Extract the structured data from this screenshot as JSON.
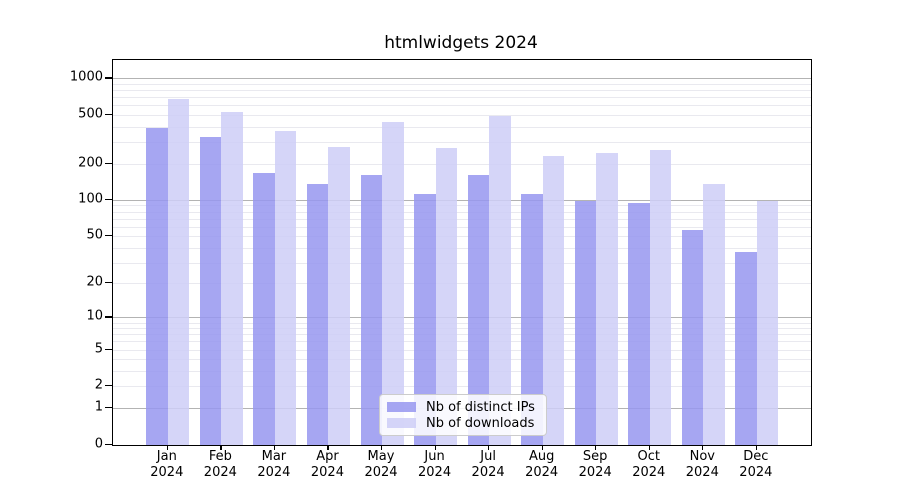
{
  "chart_data": {
    "type": "bar",
    "title": "htmlwidgets 2024",
    "categories": [
      "Jan",
      "Feb",
      "Mar",
      "Apr",
      "May",
      "Jun",
      "Jul",
      "Aug",
      "Sep",
      "Oct",
      "Nov",
      "Dec"
    ],
    "xtick_year": "2024",
    "series": [
      {
        "name": "Nb of distinct IPs",
        "values": [
          389,
          330,
          168,
          136,
          162,
          112,
          162,
          112,
          98,
          94,
          56,
          37
        ]
      },
      {
        "name": "Nb of downloads",
        "values": [
          672,
          527,
          367,
          276,
          436,
          270,
          489,
          230,
          245,
          259,
          136,
          99
        ]
      }
    ],
    "y_scale": "log1p",
    "ylim": [
      0,
      1430
    ],
    "ytick_values": [
      1000,
      500,
      200,
      100,
      50,
      20,
      10,
      5,
      2,
      1,
      0
    ],
    "ytick_labels": [
      "1000",
      "500",
      "200",
      "100",
      "50",
      "20",
      "10",
      "5",
      "2",
      "1",
      "0"
    ],
    "grid": true,
    "grid_major_values": [
      1,
      10,
      100,
      1000
    ],
    "grid_minor_values": [
      2,
      3,
      4,
      5,
      6,
      7,
      8,
      9,
      20,
      30,
      40,
      50,
      60,
      70,
      80,
      90,
      200,
      300,
      400,
      500,
      600,
      700,
      800,
      900
    ],
    "legend_position": "bottom-center",
    "colors": {
      "distinct_ips": "rgba(150,150,240,0.85)",
      "downloads": "rgba(206,206,247,0.85)",
      "grid_major": "#b3b3b3",
      "grid_minor": "#e9e9ef"
    }
  }
}
